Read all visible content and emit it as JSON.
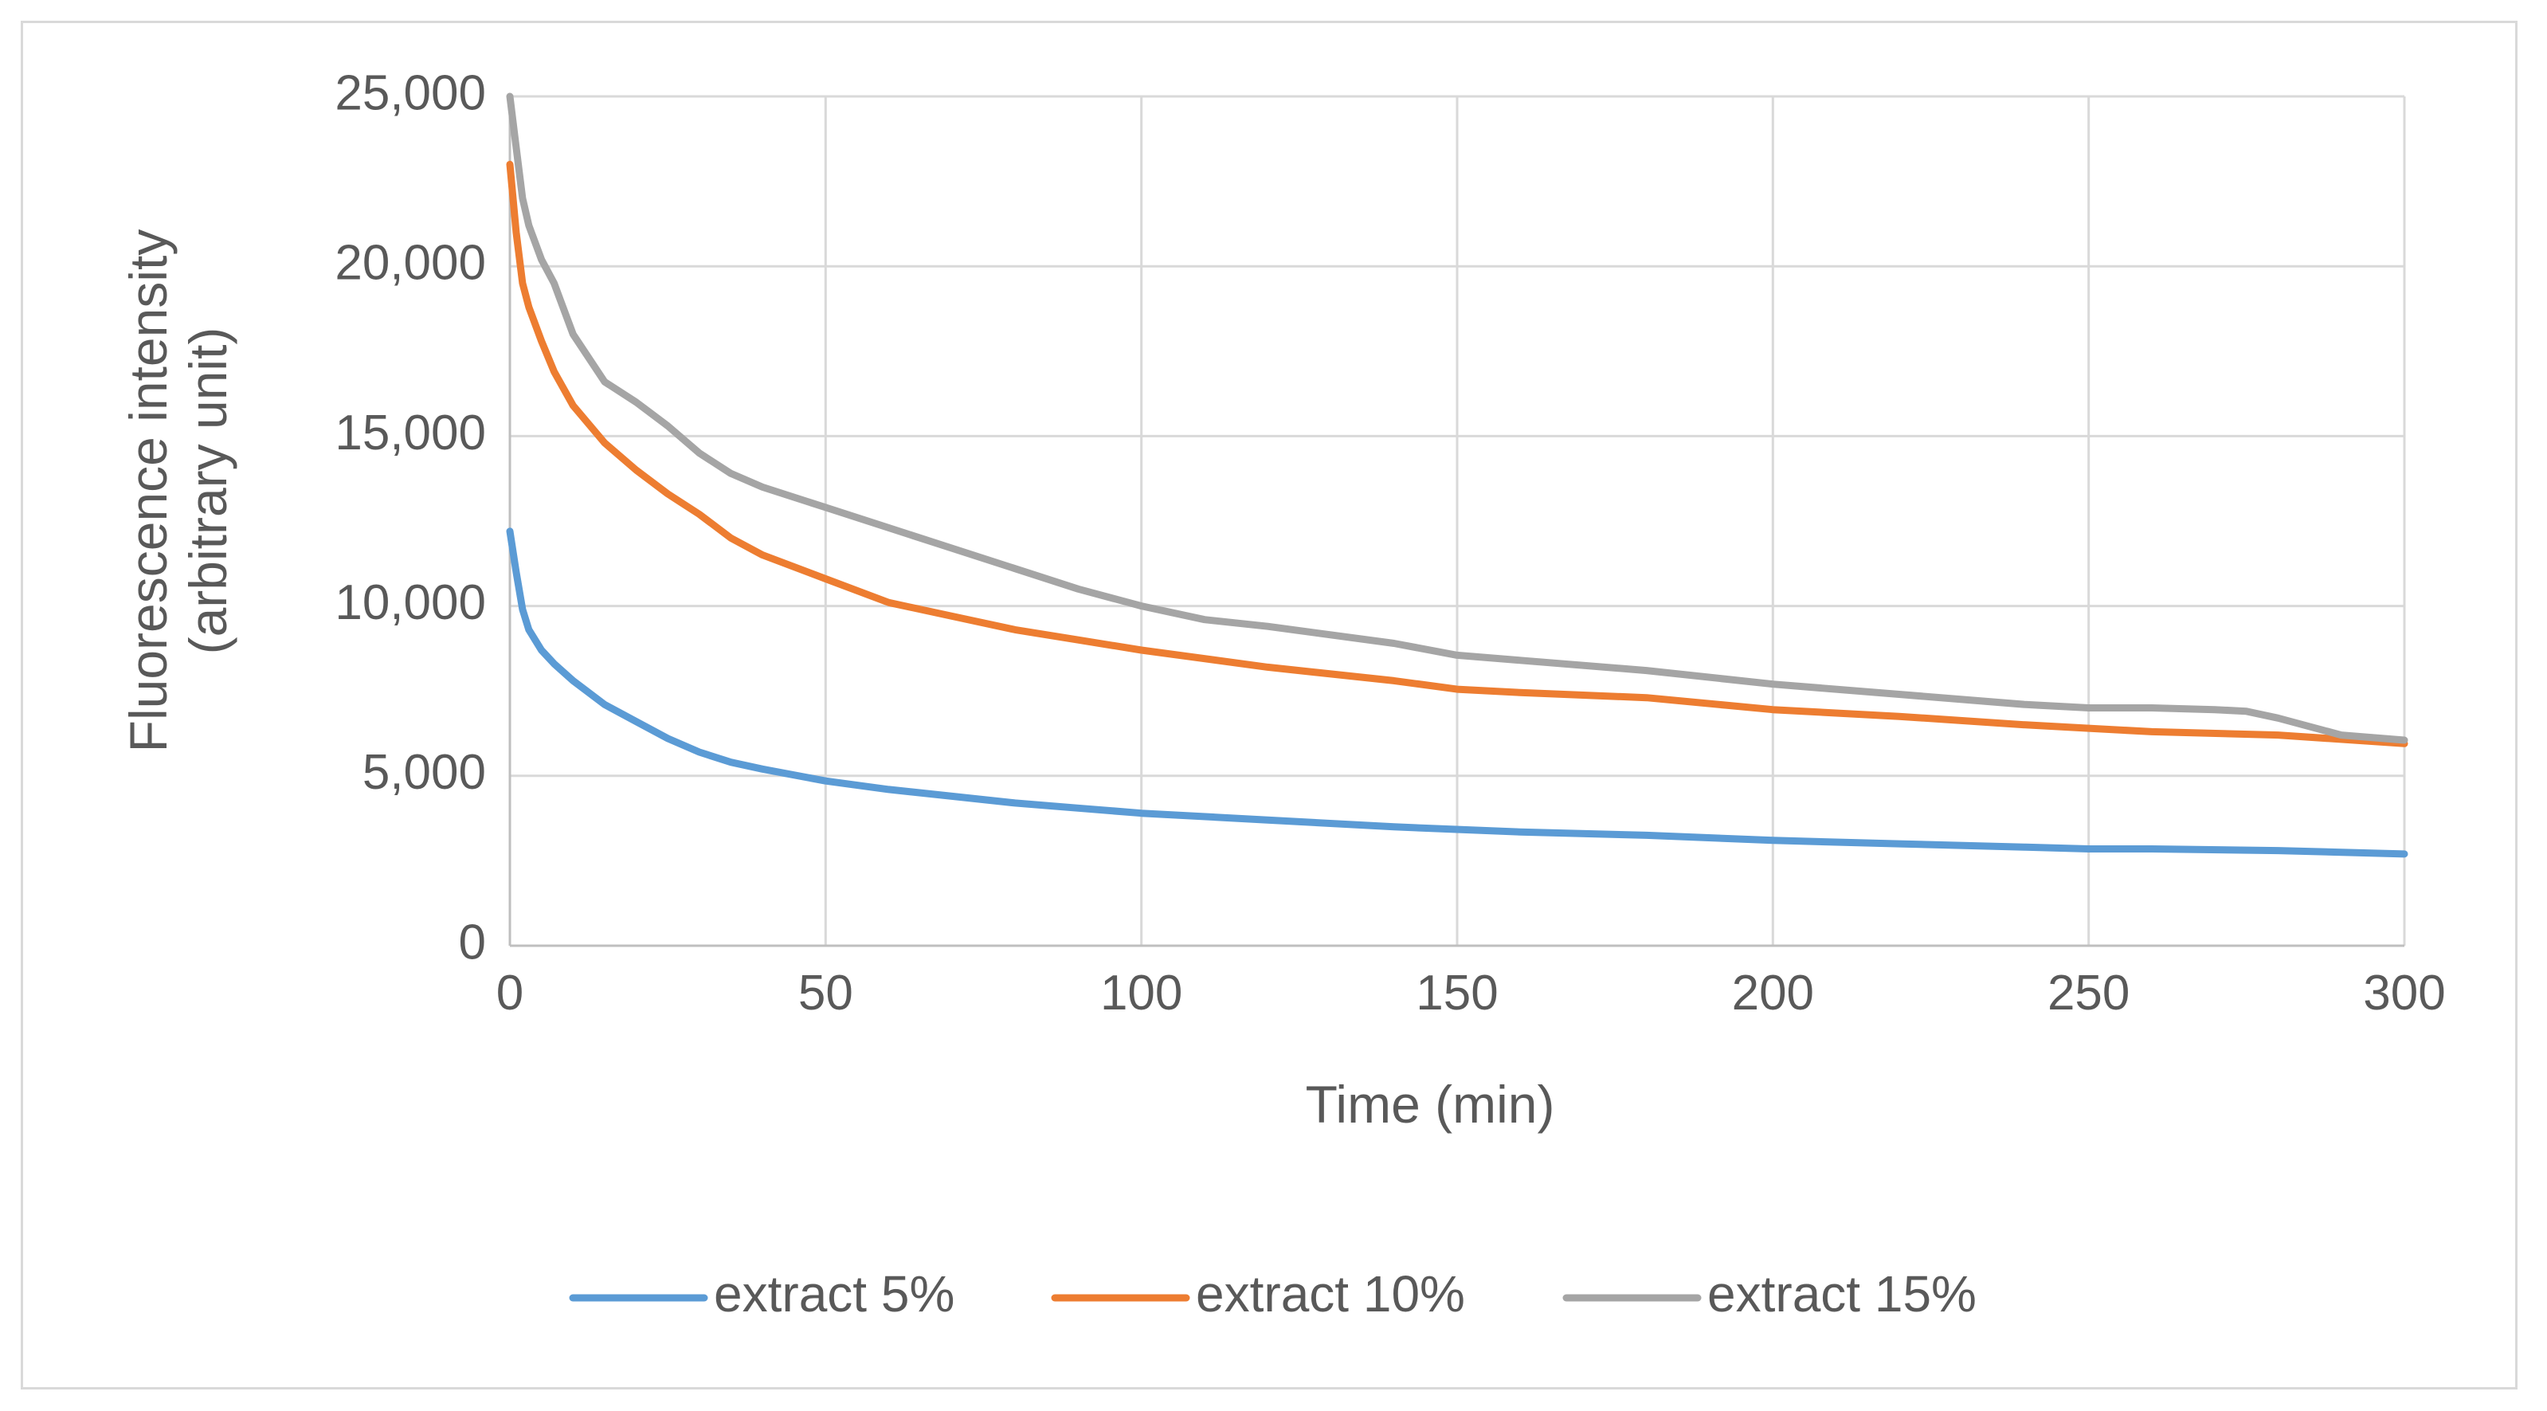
{
  "chart_data": {
    "type": "line",
    "title": "",
    "xlabel": "Time (min)",
    "ylabel_lines": [
      "Fluorescence intensity",
      "(arbitrary unit)"
    ],
    "xlim": [
      0,
      300
    ],
    "ylim": [
      0,
      25000
    ],
    "x_ticks": [
      0,
      50,
      100,
      150,
      200,
      250,
      300
    ],
    "x_tick_labels": [
      "0",
      "50",
      "100",
      "150",
      "200",
      "250",
      "300"
    ],
    "y_ticks": [
      0,
      5000,
      10000,
      15000,
      20000,
      25000
    ],
    "y_tick_labels": [
      "0",
      "5,000",
      "10,000",
      "15,000",
      "20,000",
      "25,000"
    ],
    "grid": true,
    "legend_position": "bottom",
    "series": [
      {
        "name": "extract 5%",
        "color": "#5b9bd5",
        "x": [
          0,
          1,
          2,
          3,
          5,
          7,
          10,
          15,
          20,
          25,
          30,
          35,
          40,
          50,
          60,
          70,
          80,
          90,
          100,
          120,
          140,
          160,
          180,
          200,
          220,
          240,
          250,
          260,
          280,
          300
        ],
        "y": [
          12200,
          11000,
          9900,
          9300,
          8700,
          8300,
          7800,
          7100,
          6600,
          6100,
          5700,
          5400,
          5200,
          4850,
          4600,
          4400,
          4200,
          4050,
          3900,
          3700,
          3500,
          3350,
          3250,
          3100,
          3000,
          2900,
          2850,
          2850,
          2800,
          2700
        ]
      },
      {
        "name": "extract 10%",
        "color": "#ed7d31",
        "x": [
          0,
          1,
          2,
          3,
          5,
          7,
          10,
          15,
          20,
          25,
          30,
          35,
          40,
          50,
          60,
          70,
          80,
          90,
          100,
          120,
          140,
          150,
          160,
          180,
          200,
          220,
          240,
          250,
          260,
          280,
          300
        ],
        "y": [
          23000,
          21000,
          19500,
          18800,
          17800,
          16900,
          15900,
          14800,
          14000,
          13300,
          12700,
          12000,
          11500,
          10800,
          10100,
          9700,
          9300,
          9000,
          8700,
          8200,
          7800,
          7550,
          7450,
          7300,
          6950,
          6750,
          6500,
          6400,
          6300,
          6200,
          5950
        ]
      },
      {
        "name": "extract 15%",
        "color": "#a5a5a5",
        "x": [
          0,
          1,
          2,
          3,
          5,
          7,
          8,
          10,
          15,
          20,
          25,
          30,
          35,
          40,
          50,
          60,
          70,
          80,
          90,
          100,
          110,
          120,
          140,
          150,
          160,
          180,
          200,
          220,
          240,
          250,
          260,
          270,
          275,
          280,
          290,
          300
        ],
        "y": [
          25000,
          23500,
          22000,
          21200,
          20200,
          19500,
          19000,
          18000,
          16600,
          16000,
          15300,
          14500,
          13900,
          13500,
          12900,
          12300,
          11700,
          11100,
          10500,
          10000,
          9600,
          9400,
          8900,
          8550,
          8400,
          8100,
          7700,
          7400,
          7100,
          7000,
          7000,
          6950,
          6900,
          6700,
          6200,
          6050
        ]
      }
    ]
  }
}
